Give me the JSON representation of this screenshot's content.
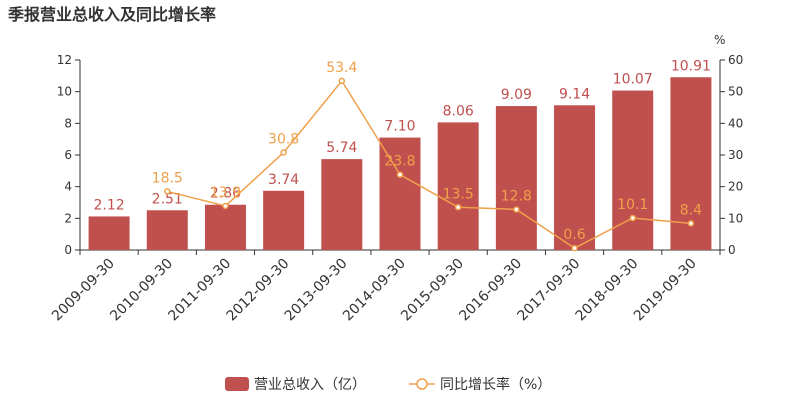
{
  "colors": {
    "bar": "#c0504d",
    "line": "#f0a04b",
    "axis": "#333333",
    "text": "#333333"
  },
  "chart_data": {
    "type": "bar",
    "title": "季报营业总收入及同比增长率",
    "categories": [
      "2009-09-30",
      "2010-09-30",
      "2011-09-30",
      "2012-09-30",
      "2013-09-30",
      "2014-09-30",
      "2015-09-30",
      "2016-09-30",
      "2017-09-30",
      "2018-09-30",
      "2019-09-30"
    ],
    "series": [
      {
        "name": "营业总收入（亿）",
        "type": "bar",
        "axis": "left",
        "values": [
          2.12,
          2.51,
          2.86,
          3.74,
          5.74,
          7.1,
          8.06,
          9.09,
          9.14,
          10.07,
          10.91
        ],
        "labels": [
          "2.12",
          "2.51",
          "2.86",
          "3.74",
          "5.74",
          "7.10",
          "8.06",
          "9.09",
          "9.14",
          "10.07",
          "10.91"
        ]
      },
      {
        "name": "同比增长率（%）",
        "type": "line",
        "axis": "right",
        "values": [
          null,
          18.5,
          13.9,
          30.8,
          53.4,
          23.8,
          13.5,
          12.8,
          0.6,
          10.1,
          8.4
        ],
        "labels": [
          "",
          "18.5",
          "13.9",
          "30.8",
          "53.4",
          "23.8",
          "13.5",
          "12.8",
          "0.6",
          "10.1",
          "8.4"
        ]
      }
    ],
    "left_axis": {
      "range": [
        0,
        12
      ],
      "ticks": [
        "0",
        "2",
        "4",
        "6",
        "8",
        "10",
        "12"
      ]
    },
    "right_axis": {
      "range": [
        0,
        60
      ],
      "ticks": [
        "0",
        "10",
        "20",
        "30",
        "40",
        "50",
        "60"
      ],
      "unit": "%"
    },
    "grid": false,
    "legend_position": "bottom-center"
  }
}
